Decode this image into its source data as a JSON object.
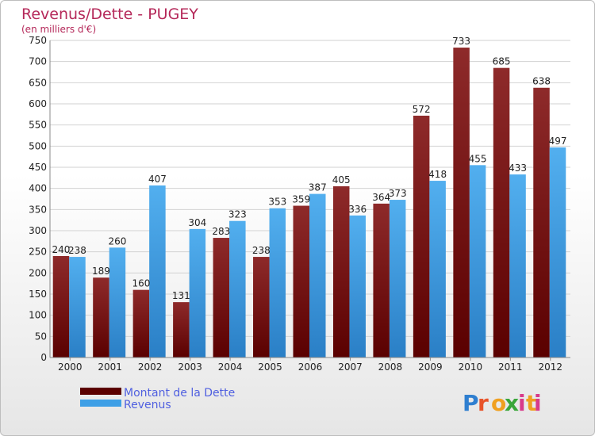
{
  "chart_data": {
    "type": "bar",
    "title": "Revenus/Dette - PUGEY",
    "subtitle": "(en milliers d'€)",
    "categories": [
      "2000",
      "2001",
      "2002",
      "2003",
      "2004",
      "2005",
      "2006",
      "2007",
      "2008",
      "2009",
      "2010",
      "2011",
      "2012"
    ],
    "series": [
      {
        "name": "Montant de la Dette",
        "color": "#7a1010",
        "values": [
          240,
          189,
          160,
          131,
          283,
          238,
          359,
          405,
          364,
          572,
          733,
          685,
          638
        ]
      },
      {
        "name": "Revenus",
        "color": "#3e9fe6",
        "values": [
          238,
          260,
          407,
          304,
          323,
          353,
          387,
          336,
          373,
          418,
          455,
          433,
          497
        ]
      }
    ],
    "ylim": [
      0,
      750
    ],
    "yticks": [
      0,
      50,
      100,
      150,
      200,
      250,
      300,
      350,
      400,
      450,
      500,
      550,
      600,
      650,
      700,
      750
    ],
    "grid": true,
    "legend": "bottom-left"
  },
  "branding": {
    "logo_text": "Proxiti",
    "logo_colors": [
      "#e8542a",
      "#f0a020",
      "#3aa63a",
      "#2f7fd0",
      "#d83a8a"
    ]
  }
}
